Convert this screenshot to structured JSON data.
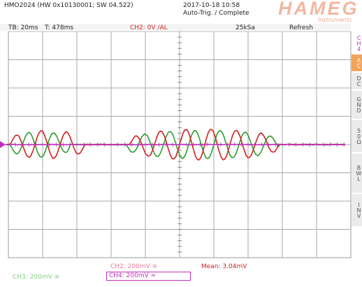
{
  "header": {
    "model": "HMO2024 (HW 0x10130001; SW 04.522)",
    "datetime": "2017-10-18 10:58",
    "status": "Auto-Trig. / Complete",
    "brand": "HAMEG",
    "brand_sub": "Instruments"
  },
  "status_bar": {
    "timebase": "TB: 20ms",
    "trigger_time": "T: 478ms",
    "trigger": "CH2: 0V /AL",
    "sample_rate": "25kSa",
    "mode": "Refresh"
  },
  "sidebar": {
    "channel": "CH4",
    "buttons": [
      "AC",
      "DC",
      "GND",
      "50Ω",
      "BWL",
      "INV"
    ]
  },
  "footer": {
    "ch2": "CH2: 200mV ≅",
    "mean": "Mean: 3.04mV",
    "ch3": "CH3: 200mV ≅",
    "ch4": "CH4: 200mV ≈"
  }
}
